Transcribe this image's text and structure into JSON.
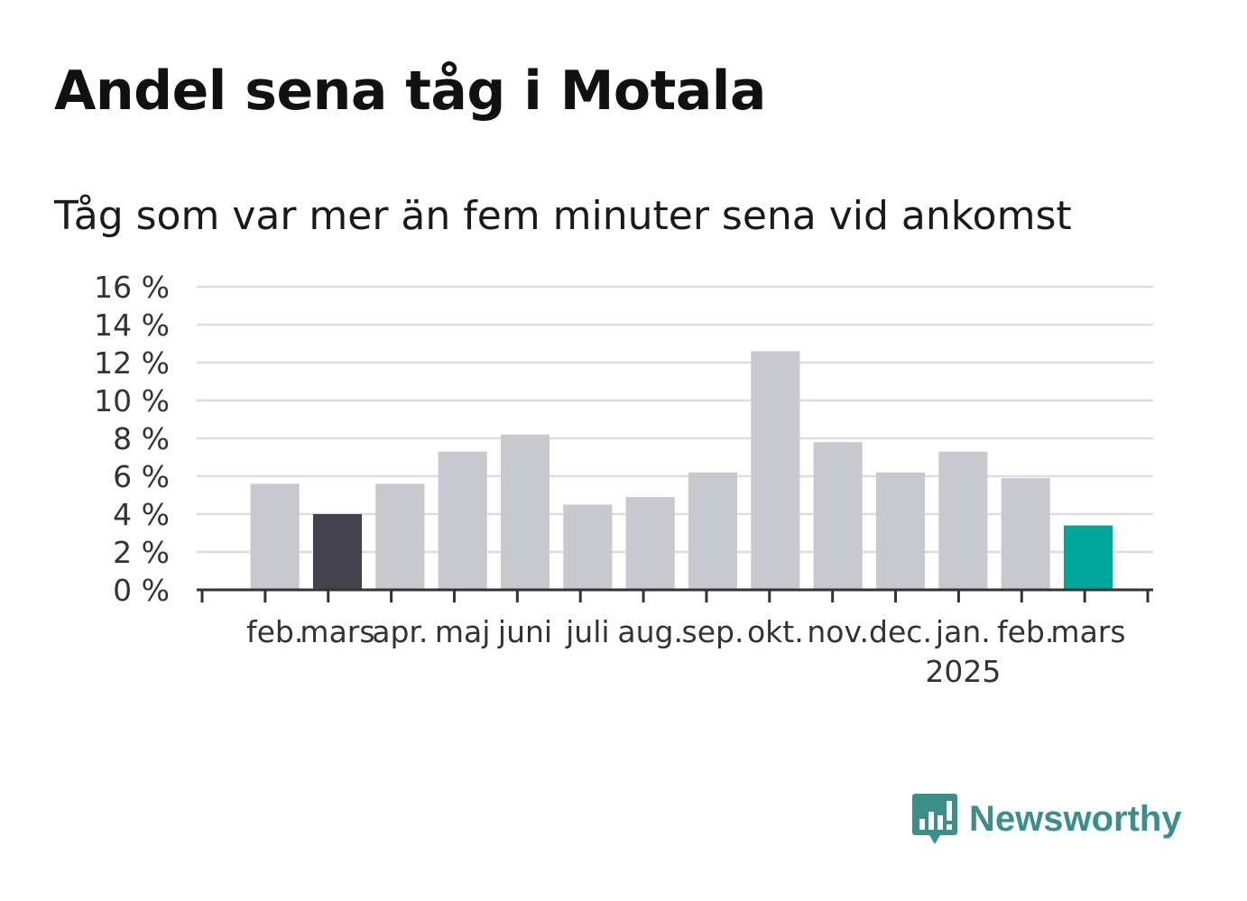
{
  "title": "Andel sena tåg i Motala",
  "subtitle": "Tåg som var mer än fem minuter sena vid ankomst",
  "brand": {
    "name": "Newsworthy",
    "icon": "newsworthy-logo-icon",
    "color": "#3a8f8a"
  },
  "colors": {
    "default": "#c8c8cf",
    "previous_year": "#43424e",
    "current": "#00a59a",
    "axis": "#333333",
    "grid": "#dddddd"
  },
  "chart_data": {
    "type": "bar",
    "categories": [
      "feb.",
      "mars",
      "apr.",
      "maj",
      "juni",
      "juli",
      "aug.",
      "sep.",
      "okt.",
      "nov.",
      "dec.",
      "jan.",
      "feb.",
      "mars"
    ],
    "year_labels": [
      "",
      "",
      "",
      "",
      "",
      "",
      "",
      "",
      "",
      "",
      "",
      "2025",
      "",
      ""
    ],
    "values": [
      5.6,
      4.0,
      5.6,
      7.3,
      8.2,
      4.5,
      4.9,
      6.2,
      12.6,
      7.8,
      6.2,
      7.3,
      5.9,
      3.4
    ],
    "highlight": [
      "default",
      "previous_year",
      "default",
      "default",
      "default",
      "default",
      "default",
      "default",
      "default",
      "default",
      "default",
      "default",
      "default",
      "current"
    ],
    "y_ticks": [
      "0 %",
      "2 %",
      "4 %",
      "6 %",
      "8 %",
      "10 %",
      "12 %",
      "14 %",
      "16 %"
    ],
    "ylim": [
      0,
      16
    ],
    "grid": true,
    "legend": false
  }
}
